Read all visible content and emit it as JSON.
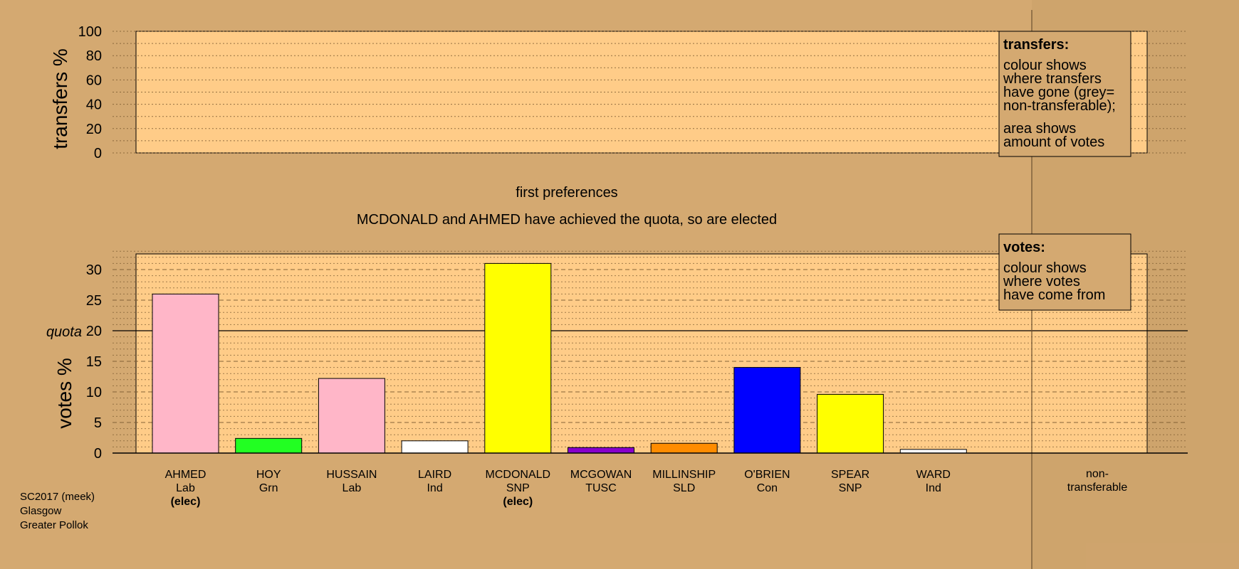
{
  "chart_data": {
    "type": "bar",
    "top_panel": {
      "ylabel": "transfers %",
      "ylim": [
        0,
        100
      ],
      "ticks": [
        0,
        20,
        40,
        60,
        80,
        100
      ]
    },
    "stage_label": "first preferences",
    "subtitle": "MCDONALD and AHMED have achieved the quota, so are elected",
    "bottom_panel": {
      "ylabel": "votes %",
      "ylim": [
        0,
        33
      ],
      "ticks": [
        0,
        5,
        10,
        15,
        20,
        25,
        30
      ],
      "quota": 20,
      "quota_label": "quota"
    },
    "categories": [
      {
        "name": "AHMED",
        "party": "Lab",
        "elected": "(elec)",
        "value": 26.0,
        "color": "#ffb6c8"
      },
      {
        "name": "HOY",
        "party": "Grn",
        "elected": "",
        "value": 2.4,
        "color": "#22ff22"
      },
      {
        "name": "HUSSAIN",
        "party": "Lab",
        "elected": "",
        "value": 12.2,
        "color": "#ffb6c8"
      },
      {
        "name": "LAIRD",
        "party": "Ind",
        "elected": "",
        "value": 2.0,
        "color": "#ffffff"
      },
      {
        "name": "MCDONALD",
        "party": "SNP",
        "elected": "(elec)",
        "value": 31.0,
        "color": "#ffff00"
      },
      {
        "name": "MCGOWAN",
        "party": "TUSC",
        "elected": "",
        "value": 0.9,
        "color": "#8800cc"
      },
      {
        "name": "MILLINSHIP",
        "party": "SLD",
        "elected": "",
        "value": 1.6,
        "color": "#ff8c00"
      },
      {
        "name": "O'BRIEN",
        "party": "Con",
        "elected": "",
        "value": 14.0,
        "color": "#0000ff"
      },
      {
        "name": "SPEAR",
        "party": "SNP",
        "elected": "",
        "value": 9.6,
        "color": "#ffff00"
      },
      {
        "name": "WARD",
        "party": "Ind",
        "elected": "",
        "value": 0.6,
        "color": "#ffffff"
      }
    ],
    "nontransferable_label": [
      "non-",
      "transferable"
    ],
    "legend_transfers": {
      "title": "transfers:",
      "lines": [
        "colour shows",
        "where transfers",
        "have gone (grey=",
        "non-transferable);"
      ],
      "lines2": [
        "area shows",
        "amount of votes"
      ]
    },
    "legend_votes": {
      "title": "votes:",
      "lines": [
        "colour shows",
        "where votes",
        "have come from"
      ]
    },
    "source": [
      "SC2017 (meek)",
      "Glasgow",
      "Greater Pollok"
    ]
  },
  "colors": {
    "background": "#d4a971",
    "panel": "#ffcc88",
    "grid": "#7a5a30"
  }
}
